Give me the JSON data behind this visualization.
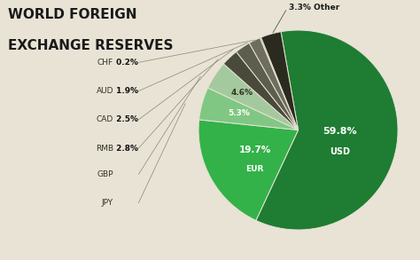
{
  "title_line1": "WORLD FOREIGN",
  "title_line2": "EXCHANGE RESERVES",
  "slices": [
    {
      "label": "USD",
      "pct": "59.8%",
      "value": 59.8,
      "color": "#1e7d32"
    },
    {
      "label": "EUR",
      "pct": "19.7%",
      "value": 19.7,
      "color": "#33b249"
    },
    {
      "label": "JPY",
      "pct": "5.3%",
      "value": 5.3,
      "color": "#81c784"
    },
    {
      "label": "GBP",
      "pct": "4.6%",
      "value": 4.6,
      "color": "#a5c99e"
    },
    {
      "label": "RMB",
      "pct": "2.8%",
      "value": 2.8,
      "color": "#4a4a3a"
    },
    {
      "label": "CAD",
      "pct": "2.5%",
      "value": 2.5,
      "color": "#5e5e4e"
    },
    {
      "label": "AUD",
      "pct": "1.9%",
      "value": 1.9,
      "color": "#6e6e5e"
    },
    {
      "label": "CHF",
      "pct": "0.2%",
      "value": 0.2,
      "color": "#7e7e6e"
    },
    {
      "label": "Other",
      "pct": "3.3%",
      "value": 3.3,
      "color": "#2a2a1e"
    }
  ],
  "bg_color": "#e8e3d5",
  "title_color": "#1a1a1a",
  "title_fontsize": 11,
  "edge_color": "#e8e3d5"
}
